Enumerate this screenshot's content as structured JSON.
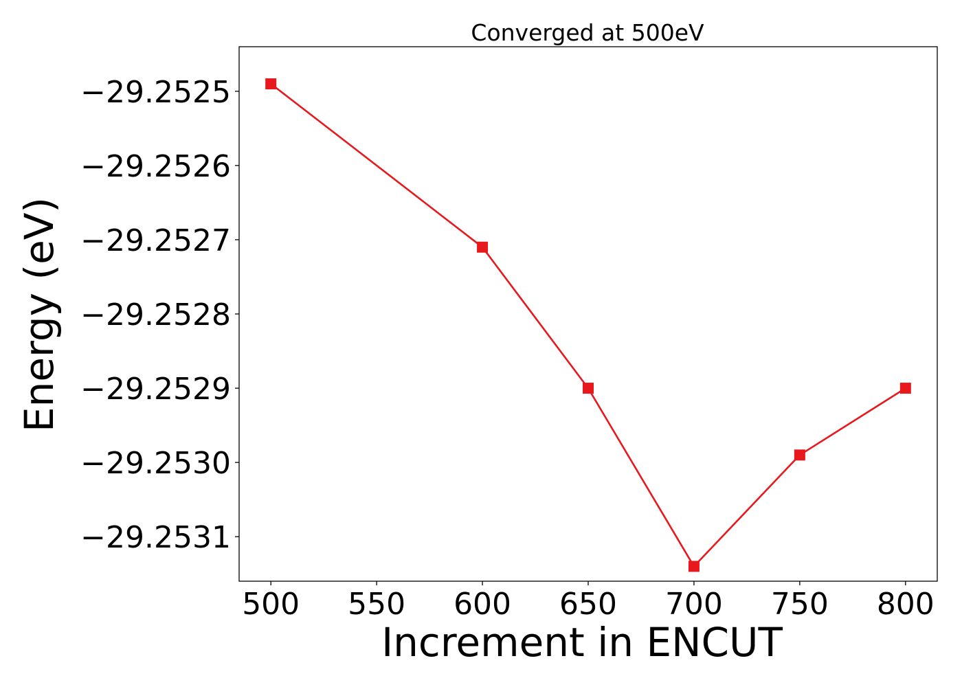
{
  "chart_data": {
    "type": "line",
    "title": "Converged at 500eV",
    "xlabel": "Increment in ENCUT",
    "ylabel": "Energy (eV)",
    "xlim": [
      485,
      815
    ],
    "ylim": [
      -29.25316,
      -29.25244
    ],
    "x_ticks": [
      500,
      550,
      600,
      650,
      700,
      750,
      800
    ],
    "x_tick_labels": [
      "500",
      "550",
      "600",
      "650",
      "700",
      "750",
      "800"
    ],
    "y_ticks": [
      -29.2525,
      -29.2526,
      -29.2527,
      -29.2528,
      -29.2529,
      -29.253,
      -29.2531
    ],
    "y_tick_labels": [
      "−29.2525",
      "−29.2526",
      "−29.2527",
      "−29.2528",
      "−29.2529",
      "−29.2530",
      "−29.2531"
    ],
    "grid": false,
    "series": [
      {
        "x": [
          500,
          600,
          650,
          700,
          750,
          800
        ],
        "y": [
          -29.25249,
          -29.25271,
          -29.2529,
          -29.25314,
          -29.25299,
          -29.2529
        ],
        "color": "#e8191d",
        "marker": "square"
      }
    ]
  }
}
